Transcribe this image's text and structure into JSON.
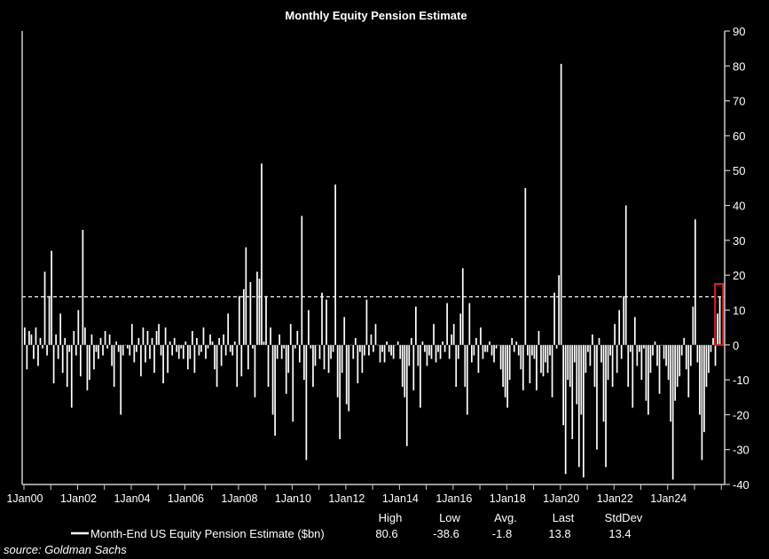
{
  "chart_data": {
    "type": "bar",
    "title": "Monthly Equity Pension Estimate",
    "series_name": "Month-End US Equity Pension Estimate ($bn)",
    "x_start": "2000-01",
    "frequency": "monthly",
    "x_tick_labels": [
      "1Jan00",
      "1Jan02",
      "1Jan04",
      "1Jan06",
      "1Jan08",
      "1Jan10",
      "1Jan12",
      "1Jan14",
      "1Jan16",
      "1Jan18",
      "1Jan20",
      "1Jan22",
      "1Jan24"
    ],
    "y_ticks": [
      90,
      80,
      70,
      60,
      50,
      40,
      30,
      20,
      10,
      0,
      -10,
      -20,
      -30,
      -40
    ],
    "ylim": [
      -40,
      90
    ],
    "y_axis_side": "right",
    "reference_line": {
      "value": 13.8,
      "style": "dashed"
    },
    "highlight": {
      "color": "#e02020",
      "covers": "last two months"
    },
    "bar_color": "#ffffff",
    "background": "#000000",
    "values": [
      5,
      -7,
      4,
      3,
      -4,
      5,
      -6,
      2,
      -1,
      21,
      -3,
      14,
      27,
      -11,
      3,
      -4,
      9,
      -8,
      2,
      -12,
      -2,
      -18,
      4,
      -3,
      10,
      -9,
      33,
      5,
      -13,
      -10,
      3,
      -7,
      -2,
      -4,
      2,
      -3,
      4,
      -1,
      3,
      -6,
      -12,
      1,
      -2,
      -20,
      -3,
      0,
      -1,
      -3,
      6,
      -5,
      -2,
      2,
      -9,
      5,
      -5,
      4,
      -4,
      2,
      -8,
      4,
      6,
      -3,
      -11,
      5,
      -8,
      1,
      -3,
      2,
      -2,
      -4,
      -1,
      -4,
      1,
      -7,
      -4,
      4,
      -8,
      2,
      -3,
      -2,
      5,
      -4,
      -1,
      3,
      1,
      -7,
      -12,
      2,
      -6,
      3,
      -3,
      9,
      -2,
      -3,
      1,
      -12,
      14,
      -9,
      16,
      28,
      -7,
      18,
      -1,
      -15,
      21,
      19,
      52,
      1,
      14,
      -12,
      5,
      -20,
      -26,
      -4,
      3,
      -4,
      -1,
      -14,
      -8,
      6,
      -22,
      -1,
      4,
      -5,
      37,
      -10,
      -33,
      10,
      -1,
      -12,
      -6,
      0,
      -4,
      15,
      -7,
      13,
      -8,
      -4,
      -2,
      46,
      -15,
      -27,
      -8,
      8,
      -17,
      -19,
      0,
      -4,
      2,
      -11,
      -2,
      -8,
      -3,
      13,
      -3,
      3,
      -2,
      6,
      0,
      -5,
      -2,
      -5,
      1,
      -2,
      -3,
      -4,
      0,
      1,
      -4,
      -12,
      -15,
      -29,
      -6,
      2,
      -13,
      11,
      -6,
      -18,
      1,
      -2,
      -6,
      -3,
      -4,
      6,
      -5,
      -2,
      -4,
      1,
      -2,
      12,
      -4,
      3,
      6,
      -12,
      -4,
      9,
      22,
      -12,
      -20,
      12,
      -5,
      -3,
      2,
      -8,
      5,
      -4,
      -2,
      -2,
      1,
      -3,
      -5,
      -1,
      0,
      -7,
      -12,
      -15,
      -18,
      -10,
      2,
      -2,
      1,
      -3,
      -7,
      -13,
      45,
      -3,
      -11,
      -3,
      -4,
      -13,
      4,
      -8,
      -9,
      -5,
      -8,
      -3,
      -15,
      15,
      -1,
      20,
      80.6,
      -23,
      -37,
      -10,
      -12,
      -27,
      -5,
      -17,
      -35,
      -20,
      -38,
      -8,
      -2,
      -6,
      3,
      -12,
      -30,
      2,
      -5,
      -22,
      -35,
      -10,
      -3,
      -12,
      6,
      -8,
      10,
      -4,
      14,
      40,
      -12,
      -2,
      -18,
      8,
      -6,
      -2,
      -10,
      -1,
      -16,
      -20,
      -8,
      -3,
      1,
      -6,
      -14,
      0,
      -4,
      -6,
      -10,
      -22,
      -38.6,
      -16,
      -12,
      -9,
      -3,
      2,
      -7,
      -15,
      -6,
      11,
      36,
      -5,
      -20,
      -33,
      -25,
      -12,
      -8,
      -2,
      2,
      -6,
      9,
      13.8
    ],
    "stats": {
      "headers": [
        "High",
        "Low",
        "Avg.",
        "Last",
        "StdDev"
      ],
      "values": [
        "80.6",
        "-38.6",
        "-1.8",
        "13.8",
        "13.4"
      ]
    },
    "legend_placement": "bottom"
  },
  "source": "source: Goldman Sachs"
}
